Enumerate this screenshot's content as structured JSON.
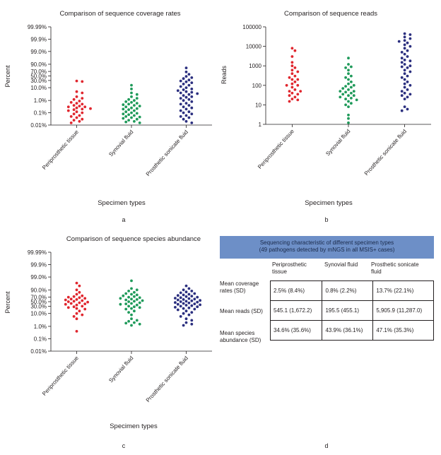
{
  "figure": {
    "panel_labels": [
      "a",
      "b",
      "c",
      "d"
    ],
    "series_colors": [
      "#e0262e",
      "#1f9a5a",
      "#2b2f7f"
    ]
  },
  "chart_data": [
    {
      "type": "scatter",
      "panel": "a",
      "title": "Comparison of sequence coverage rates",
      "xlabel": "Specimen types",
      "ylabel": "Percent",
      "y_scale": "logit-percent",
      "ylim": [
        0.01,
        99.99
      ],
      "y_ticks": [
        "99.99%",
        "99.9%",
        "99.0%",
        "90.0%",
        "70.0%",
        "50.0%",
        "30.0%",
        "10.0%",
        "1.0%",
        "0.1%",
        "0.01%"
      ],
      "y_tick_values": [
        99.99,
        99.9,
        99.0,
        90.0,
        70.0,
        50.0,
        30.0,
        10.0,
        1.0,
        0.1,
        0.01
      ],
      "categories": [
        "Periprosthetic tissue",
        "Synovial fluid",
        "Prosthetic sonicate fluid"
      ],
      "grid": false,
      "series": [
        {
          "values": [
            28,
            26,
            5,
            4,
            2,
            1.5,
            1.2,
            0.9,
            0.7,
            0.6,
            0.5,
            0.4,
            0.35,
            0.3,
            0.3,
            0.25,
            0.22,
            0.2,
            0.18,
            0.15,
            0.12,
            0.1,
            0.08,
            0.06,
            0.05,
            0.04,
            0.03,
            0.025,
            0.02,
            0.015
          ]
        },
        {
          "values": [
            15,
            8,
            4,
            3,
            2,
            1.5,
            1.2,
            1,
            0.8,
            0.7,
            0.6,
            0.5,
            0.45,
            0.4,
            0.35,
            0.3,
            0.25,
            0.22,
            0.2,
            0.18,
            0.15,
            0.12,
            0.1,
            0.09,
            0.08,
            0.07,
            0.06,
            0.05,
            0.045,
            0.04,
            0.035,
            0.03,
            0.025,
            0.02,
            0.018,
            0.015
          ]
        },
        {
          "values": [
            82,
            68,
            58,
            48,
            42,
            38,
            32,
            28,
            25,
            22,
            18,
            15,
            12,
            10,
            8,
            7,
            6,
            5,
            4.5,
            4,
            3.5,
            3,
            2.5,
            2,
            1.8,
            1.5,
            1.2,
            1,
            0.8,
            0.6,
            0.5,
            0.4,
            0.3,
            0.25,
            0.2,
            0.15,
            0.12,
            0.1,
            0.08,
            0.06,
            0.05,
            0.04,
            0.03,
            0.02,
            0.015
          ]
        }
      ]
    },
    {
      "type": "scatter",
      "panel": "b",
      "title": "Comparison of sequence reads",
      "xlabel": "Specimen types",
      "ylabel": "Reads",
      "y_scale": "log",
      "ylim": [
        1,
        100000
      ],
      "y_ticks": [
        "100000",
        "10000",
        "1000",
        "100",
        "10",
        "1"
      ],
      "y_tick_values": [
        100000,
        10000,
        1000,
        100,
        10,
        1
      ],
      "categories": [
        "Periprosthetic tissue",
        "Synovial fluid",
        "Prosthetic sonicate fluid"
      ],
      "grid": false,
      "series": [
        {
          "values": [
            8000,
            6000,
            3000,
            1500,
            1000,
            800,
            600,
            500,
            400,
            300,
            250,
            200,
            200,
            150,
            120,
            100,
            100,
            80,
            60,
            50,
            50,
            40,
            35,
            30,
            25,
            20,
            18,
            15
          ]
        },
        {
          "values": [
            2500,
            1200,
            900,
            800,
            600,
            400,
            300,
            250,
            200,
            150,
            120,
            100,
            90,
            80,
            70,
            60,
            50,
            50,
            45,
            40,
            35,
            30,
            30,
            25,
            22,
            20,
            18,
            15,
            12,
            10,
            8,
            3,
            2,
            1.2
          ]
        },
        {
          "values": [
            45000,
            40000,
            30000,
            25000,
            20000,
            18000,
            15000,
            12000,
            10000,
            8000,
            6000,
            5000,
            4000,
            3000,
            2500,
            2000,
            1800,
            1500,
            1200,
            1000,
            900,
            800,
            600,
            500,
            400,
            300,
            250,
            200,
            150,
            120,
            100,
            80,
            60,
            50,
            40,
            35,
            30,
            25,
            20,
            8,
            6,
            5
          ]
        }
      ]
    },
    {
      "type": "scatter",
      "panel": "c",
      "title": "Comparison of sequence species abundance",
      "xlabel": "Specimen types",
      "ylabel": "Percent",
      "y_scale": "logit-percent",
      "ylim": [
        0.01,
        99.99
      ],
      "y_ticks": [
        "99.99%",
        "99.9%",
        "99.0%",
        "90.0%",
        "70.0%",
        "50.0%",
        "30.0%",
        "10.0%",
        "1.0%",
        "0.1%",
        "0.01%"
      ],
      "y_tick_values": [
        99.99,
        99.9,
        99.0,
        90.0,
        70.0,
        50.0,
        30.0,
        10.0,
        1.0,
        0.1,
        0.01
      ],
      "categories": [
        "Periprosthetic tissue",
        "Synovial fluid",
        "Prosthetic sonicate fluid"
      ],
      "grid": false,
      "series": [
        {
          "values": [
            97,
            95,
            90,
            85,
            80,
            75,
            72,
            70,
            68,
            65,
            62,
            60,
            58,
            55,
            52,
            50,
            48,
            45,
            42,
            40,
            38,
            35,
            30,
            28,
            25,
            22,
            20,
            15,
            10,
            8,
            6,
            4,
            0.4
          ]
        },
        {
          "values": [
            98,
            92,
            90,
            88,
            85,
            82,
            80,
            78,
            75,
            72,
            70,
            68,
            65,
            62,
            60,
            58,
            55,
            52,
            50,
            45,
            42,
            40,
            38,
            35,
            30,
            28,
            25,
            22,
            20,
            15,
            12,
            8,
            4,
            3,
            2.5,
            2,
            1.8,
            1.5,
            1.2
          ]
        },
        {
          "values": [
            95,
            92,
            90,
            88,
            86,
            84,
            82,
            80,
            78,
            76,
            74,
            72,
            70,
            68,
            66,
            64,
            62,
            60,
            58,
            56,
            54,
            52,
            50,
            48,
            46,
            44,
            42,
            40,
            38,
            36,
            34,
            32,
            30,
            28,
            26,
            24,
            22,
            20,
            18,
            15,
            12,
            10,
            8,
            6,
            4,
            3,
            2,
            1.5,
            1.2
          ]
        }
      ]
    },
    {
      "type": "table",
      "panel": "d",
      "title": "Sequencing characteristic of different specimen types",
      "subtitle": "(49 pathogens detected by mNGS in all MSIS+ cases)",
      "columns": [
        "Periprosthetic tissue",
        "Synovial fluid",
        "Prosthetic sonicate fluid"
      ],
      "rows": [
        {
          "label": "Mean coverage rates (SD)",
          "cells": [
            "2.5% (8.4%)",
            "0.8% (2.2%)",
            "13.7% (22.1%)"
          ]
        },
        {
          "label": "Mean reads (SD)",
          "cells": [
            "545.1 (1,672.2)",
            "195.5 (455.1)",
            "5,905.9 (11,287.0)"
          ]
        },
        {
          "label": "Mean species abundance (SD)",
          "cells": [
            "34.6% (35.6%)",
            "43.9% (36.1%)",
            "47.1% (35.3%)"
          ]
        }
      ]
    }
  ]
}
